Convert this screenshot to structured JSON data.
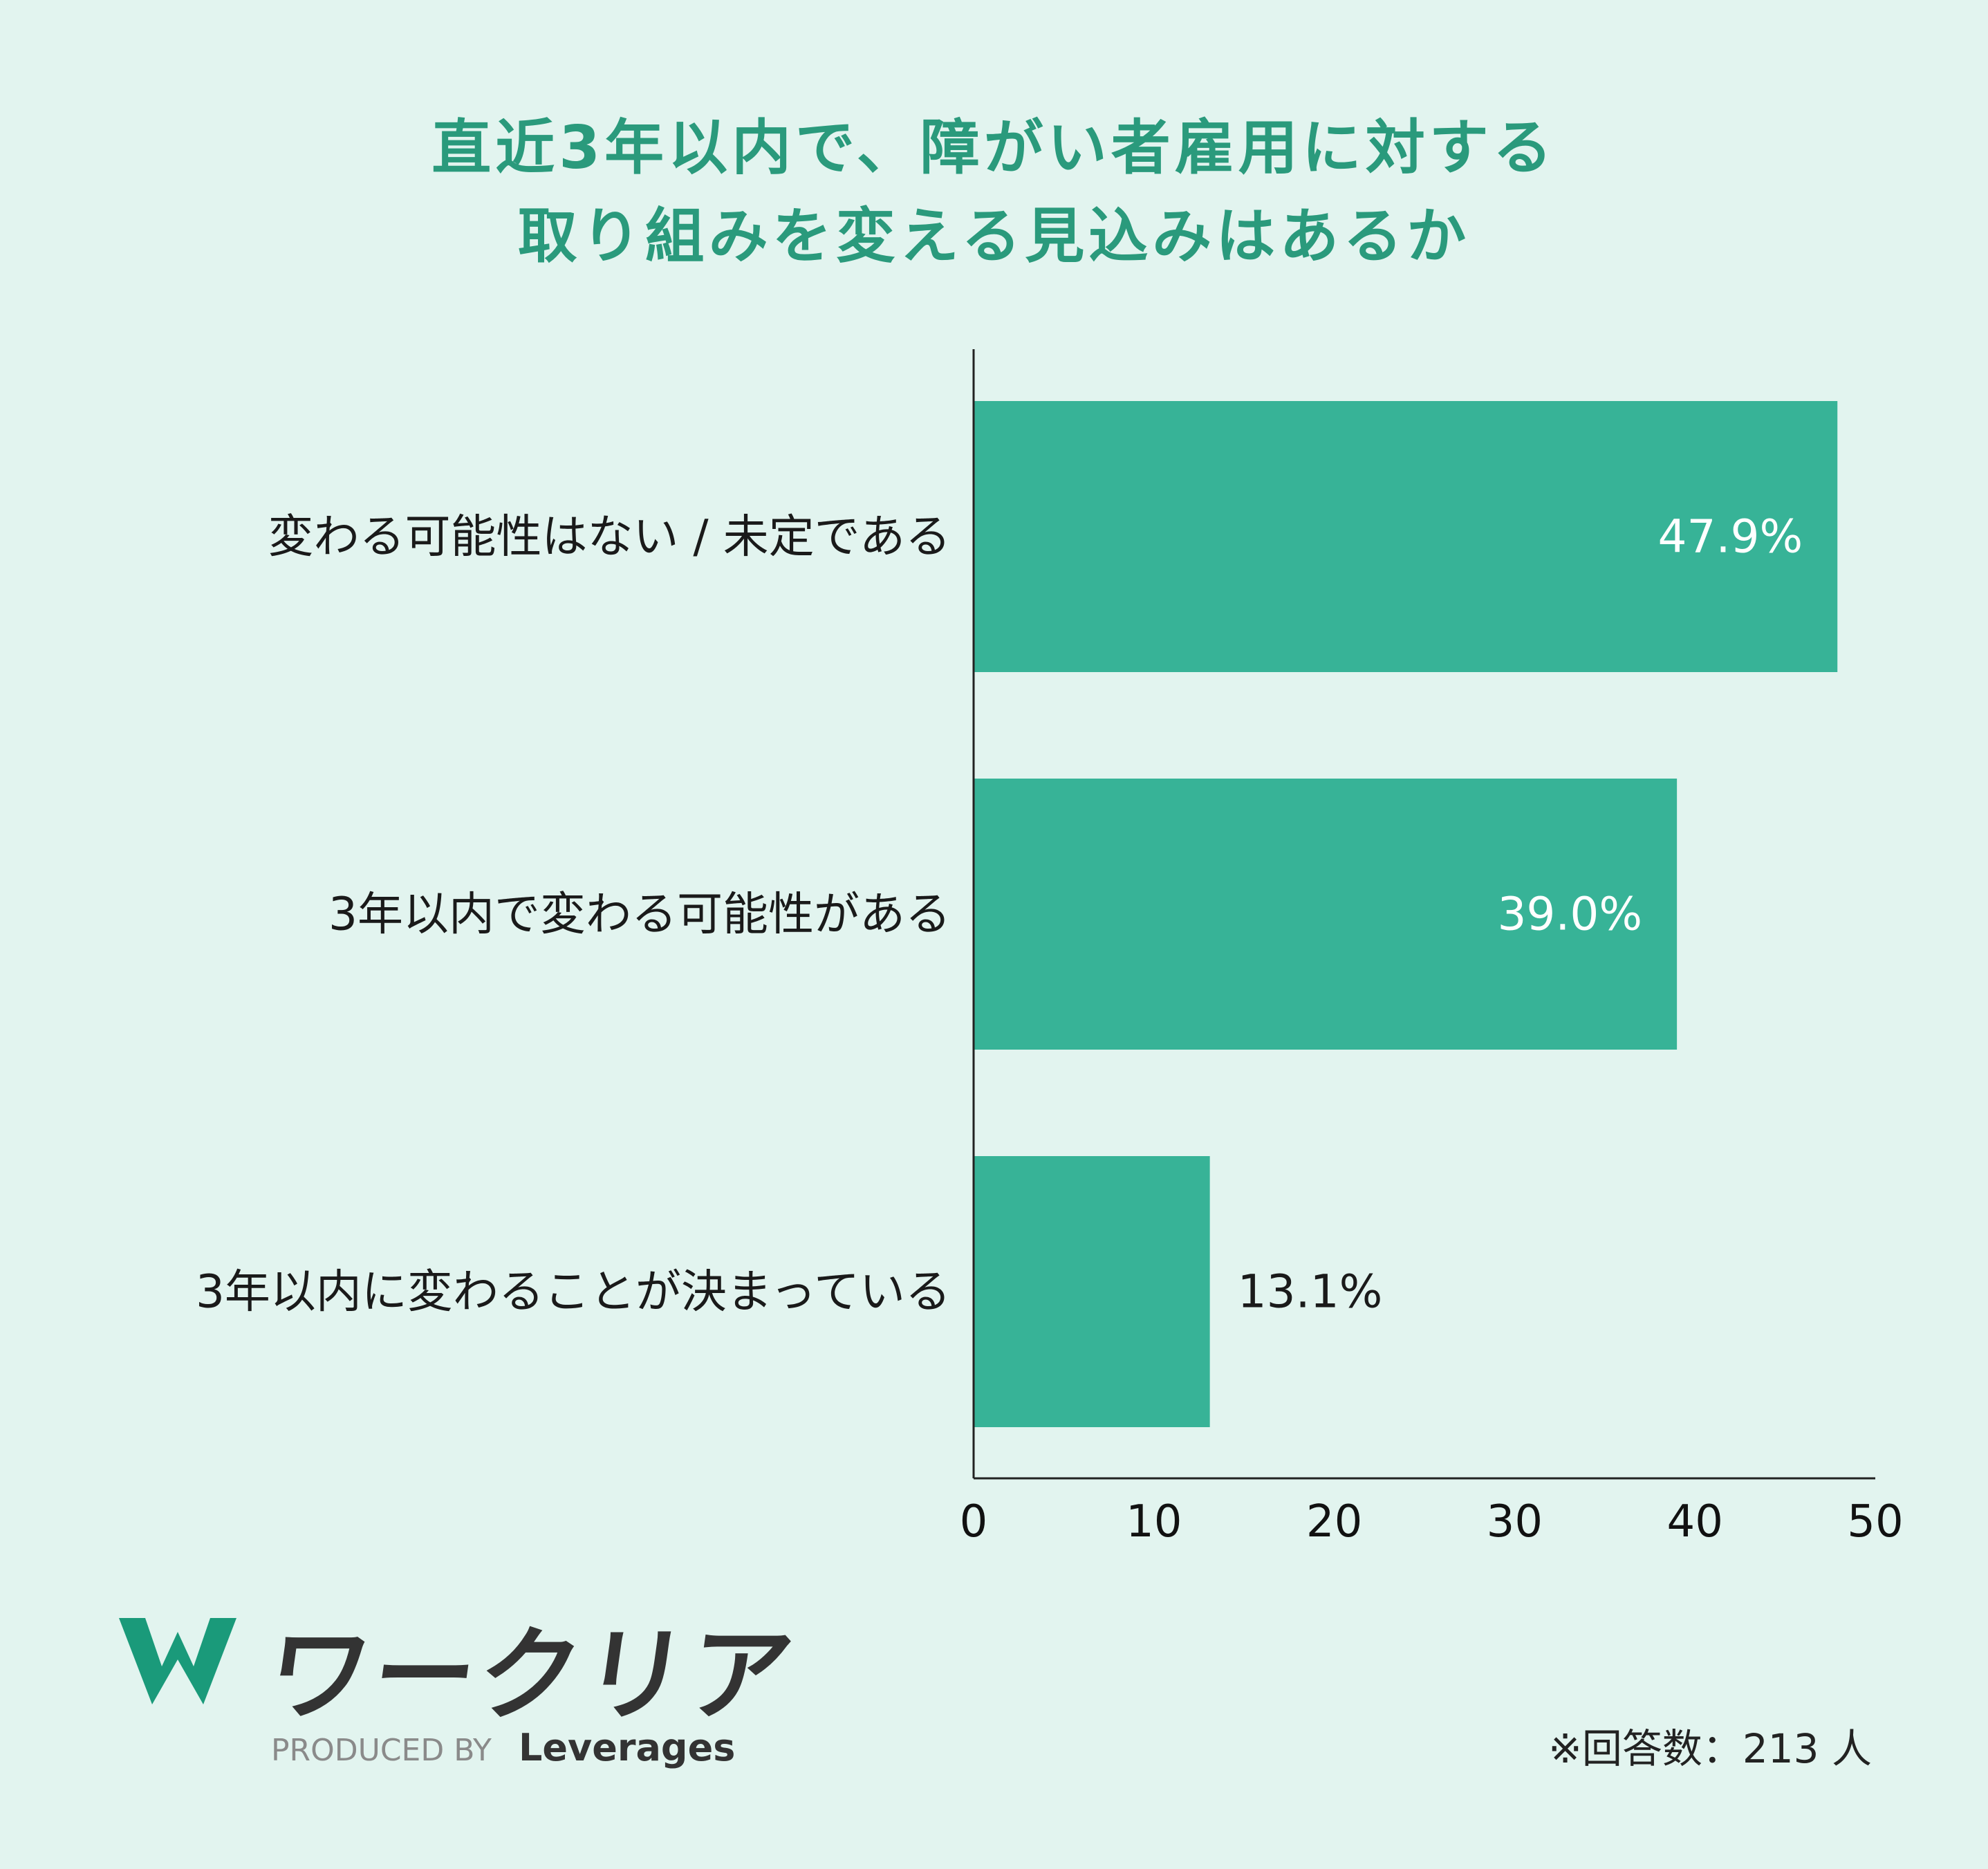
{
  "title_lines": [
    "直近3年以内で、障がい者雇用に対する",
    "取り組みを変える見込みはあるか"
  ],
  "colors": {
    "title": "#2a9a7c",
    "bar": "#37b397",
    "background": "#e2f4ef",
    "label_inside": "#ffffff",
    "label_outside": "#1a1a1a"
  },
  "chart_data": {
    "type": "bar",
    "orientation": "horizontal",
    "categories": [
      "変わる可能性はない / 未定である",
      "3年以内で変わる可能性がある",
      "3年以内に変わることが決まっている"
    ],
    "values": [
      47.9,
      39.0,
      13.1
    ],
    "value_labels": [
      "47.9%",
      "39.0%",
      "13.1%"
    ],
    "xlim": [
      0,
      50
    ],
    "xticks": [
      0,
      10,
      20,
      30,
      40,
      50
    ],
    "grid": false
  },
  "footnote": "※回答数：213 人",
  "logo": {
    "icon": "w-logo-icon",
    "wordmark": "ワークリア",
    "produced_by": "PRODUCED BY",
    "brand": "Leverages"
  }
}
